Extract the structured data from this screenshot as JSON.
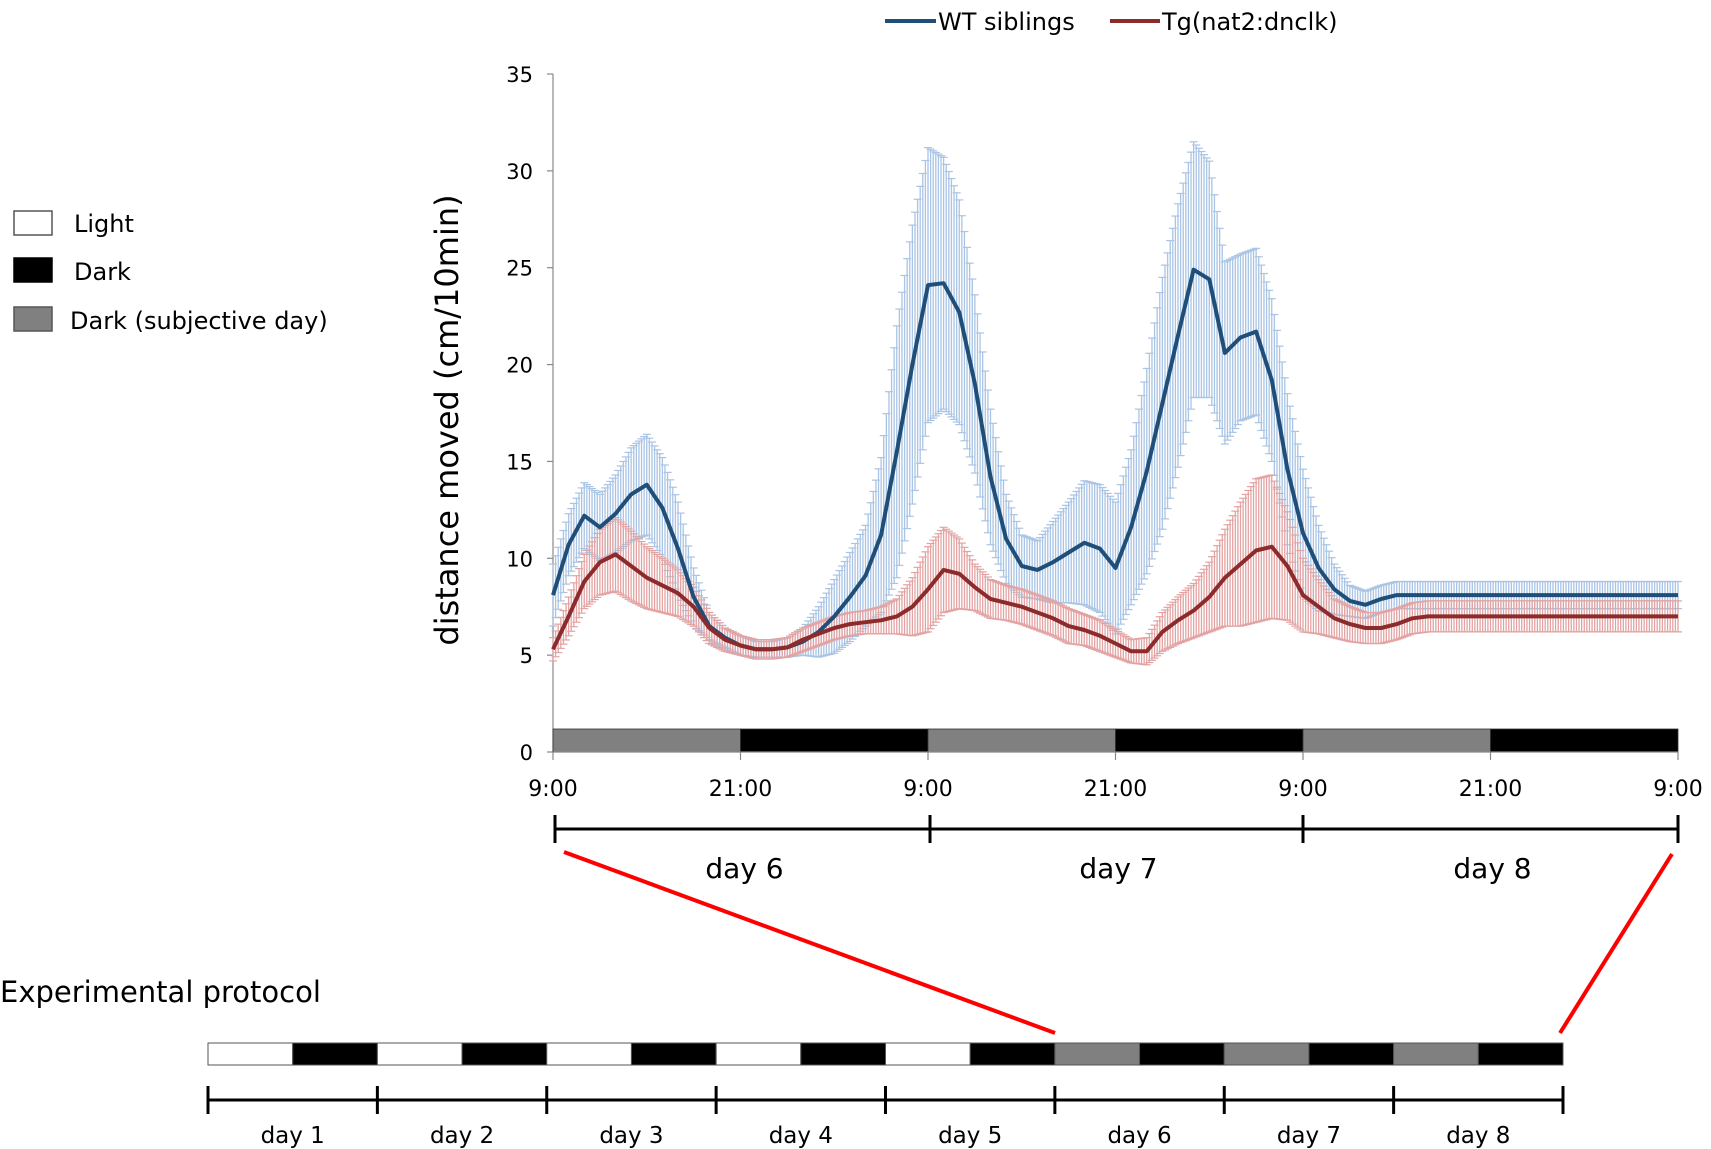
{
  "chart_data": {
    "type": "line",
    "ylabel": "distance moved (cm/10min)",
    "ylim": [
      0,
      35
    ],
    "yticks": [
      0,
      5,
      10,
      15,
      20,
      25,
      30,
      35
    ],
    "xticks": [
      "9:00",
      "21:00",
      "9:00",
      "21:00",
      "9:00",
      "21:00",
      "9:00"
    ],
    "x_hours": [
      0,
      72
    ],
    "legend_position": "top",
    "series": [
      {
        "name": "WT siblings",
        "color": "#1f4e79",
        "error_color": "#a9c4e4",
        "x": [
          0,
          1,
          2,
          3,
          4,
          5,
          6,
          7,
          8,
          9,
          10,
          11,
          12,
          13,
          14,
          15,
          16,
          17,
          18,
          19,
          20,
          21,
          22,
          23,
          24,
          25,
          26,
          27,
          28,
          29,
          30,
          31,
          32,
          33,
          34,
          35,
          36,
          37,
          38,
          39,
          40,
          41,
          42,
          43,
          44,
          45,
          46,
          47,
          48,
          49,
          50,
          51,
          52,
          53,
          54,
          55,
          56,
          57,
          58,
          59,
          60,
          61,
          62,
          63,
          64,
          65,
          66,
          67,
          68,
          69,
          70,
          71,
          72
        ],
        "values": [
          8.1,
          10.7,
          12.2,
          11.6,
          12.3,
          13.3,
          13.8,
          12.6,
          10.5,
          8.0,
          6.5,
          5.9,
          5.5,
          5.3,
          5.3,
          5.4,
          5.7,
          6.2,
          7.0,
          8.0,
          9.1,
          11.2,
          15.5,
          20.0,
          24.1,
          24.2,
          22.7,
          19.0,
          14.2,
          11.0,
          9.6,
          9.4,
          9.8,
          10.3,
          10.8,
          10.5,
          9.5,
          11.6,
          14.5,
          18.0,
          21.5,
          24.9,
          24.4,
          20.6,
          21.4,
          21.7,
          19.2,
          14.6,
          11.3,
          9.5,
          8.4,
          7.8,
          7.6,
          7.9,
          8.1,
          8.1,
          8.1,
          8.1,
          8.1,
          8.1,
          8.1,
          8.1,
          8.1,
          8.1,
          8.1,
          8.1,
          8.1,
          8.1,
          8.1,
          8.1,
          8.1,
          8.1,
          8.1
        ],
        "error": [
          1.6,
          1.6,
          1.7,
          1.7,
          2.0,
          2.4,
          2.6,
          2.6,
          2.4,
          1.5,
          0.7,
          0.5,
          0.5,
          0.4,
          0.4,
          0.5,
          0.7,
          1.3,
          1.9,
          2.3,
          2.6,
          4.0,
          6.5,
          7.2,
          7.1,
          6.5,
          5.8,
          4.6,
          3.5,
          2.3,
          1.6,
          1.5,
          2.1,
          2.6,
          3.2,
          3.3,
          3.4,
          4.0,
          5.3,
          6.5,
          6.8,
          6.6,
          6.1,
          4.7,
          4.3,
          4.3,
          4.2,
          3.9,
          3.3,
          2.2,
          1.3,
          0.8,
          0.7,
          0.7,
          0.7,
          0.7,
          0.7,
          0.7,
          0.7,
          0.7,
          0.7,
          0.7,
          0.7,
          0.7,
          0.7,
          0.7,
          0.7,
          0.7,
          0.7,
          0.7,
          0.7,
          0.7,
          0.7
        ]
      },
      {
        "name": "Tg(nat2:dnclk)",
        "color": "#8b2b2b",
        "error_color": "#e3a3a3",
        "x": [
          0,
          1,
          2,
          3,
          4,
          5,
          6,
          7,
          8,
          9,
          10,
          11,
          12,
          13,
          14,
          15,
          16,
          17,
          18,
          19,
          20,
          21,
          22,
          23,
          24,
          25,
          26,
          27,
          28,
          29,
          30,
          31,
          32,
          33,
          34,
          35,
          36,
          37,
          38,
          39,
          40,
          41,
          42,
          43,
          44,
          45,
          46,
          47,
          48,
          49,
          50,
          51,
          52,
          53,
          54,
          55,
          56,
          57,
          58,
          59,
          60,
          61,
          62,
          63,
          64,
          65,
          66,
          67,
          68,
          69,
          70,
          71,
          72
        ],
        "values": [
          5.3,
          7.0,
          8.8,
          9.8,
          10.2,
          9.6,
          9.0,
          8.6,
          8.2,
          7.5,
          6.4,
          5.8,
          5.5,
          5.3,
          5.3,
          5.4,
          5.8,
          6.1,
          6.4,
          6.6,
          6.7,
          6.8,
          7.0,
          7.5,
          8.4,
          9.4,
          9.2,
          8.5,
          7.9,
          7.7,
          7.5,
          7.2,
          6.9,
          6.5,
          6.3,
          6.0,
          5.6,
          5.2,
          5.2,
          6.2,
          6.8,
          7.3,
          8.0,
          9.0,
          9.7,
          10.4,
          10.6,
          9.6,
          8.1,
          7.5,
          6.9,
          6.6,
          6.4,
          6.4,
          6.6,
          6.9,
          7.0,
          7.0,
          7.0,
          7.0,
          7.0,
          7.0,
          7.0,
          7.0,
          7.0,
          7.0,
          7.0,
          7.0,
          7.0,
          7.0,
          7.0,
          7.0,
          7.0
        ],
        "error": [
          0.6,
          1.0,
          1.4,
          1.7,
          1.9,
          1.8,
          1.6,
          1.4,
          1.2,
          1.0,
          0.8,
          0.6,
          0.5,
          0.5,
          0.5,
          0.5,
          0.6,
          0.6,
          0.6,
          0.6,
          0.6,
          0.7,
          0.9,
          1.5,
          2.2,
          2.2,
          1.8,
          1.2,
          1.0,
          0.9,
          0.9,
          0.9,
          0.9,
          0.9,
          0.8,
          0.8,
          0.7,
          0.6,
          0.7,
          1.0,
          1.2,
          1.4,
          1.8,
          2.5,
          3.2,
          3.7,
          3.7,
          2.8,
          1.9,
          1.4,
          1.0,
          0.9,
          0.8,
          0.8,
          0.8,
          0.8,
          0.8,
          0.8,
          0.8,
          0.8,
          0.8,
          0.8,
          0.8,
          0.8,
          0.8,
          0.8,
          0.8,
          0.8,
          0.8,
          0.8,
          0.8,
          0.8,
          0.8
        ]
      }
    ],
    "light_bar": [
      "Dark (subjective day)",
      "Dark",
      "Dark (subjective day)",
      "Dark",
      "Dark (subjective day)",
      "Dark"
    ],
    "day_labels": [
      "day 6",
      "day 7",
      "day 8"
    ]
  },
  "legend_key": {
    "items": [
      {
        "label": "Light",
        "color": "#ffffff"
      },
      {
        "label": "Dark",
        "color": "#000000"
      },
      {
        "label": "Dark (subjective day)",
        "color": "#808080"
      }
    ]
  },
  "protocol": {
    "title": "Experimental protocol",
    "segments": [
      "Light",
      "Dark",
      "Light",
      "Dark",
      "Light",
      "Dark",
      "Light",
      "Dark",
      "Light",
      "Dark",
      "Dark (subjective day)",
      "Dark",
      "Dark (subjective day)",
      "Dark",
      "Dark (subjective day)",
      "Dark"
    ],
    "days": [
      "day 1",
      "day 2",
      "day 3",
      "day 4",
      "day 5",
      "day 6",
      "day 7",
      "day 8"
    ]
  },
  "colors": {
    "light": "#ffffff",
    "dark": "#000000",
    "subjective": "#808080",
    "zoom_line": "#ff0000"
  }
}
